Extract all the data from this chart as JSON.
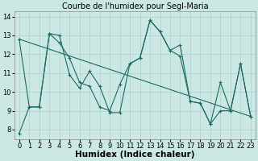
{
  "title": "Courbe de l'humidex pour Segl-Maria",
  "xlabel": "Humidex (Indice chaleur)",
  "xlim": [
    -0.5,
    23.5
  ],
  "ylim": [
    7.5,
    14.3
  ],
  "yticks": [
    8,
    9,
    10,
    11,
    12,
    13,
    14
  ],
  "xticks": [
    0,
    1,
    2,
    3,
    4,
    5,
    6,
    7,
    8,
    9,
    10,
    11,
    12,
    13,
    14,
    15,
    16,
    17,
    18,
    19,
    20,
    21,
    22,
    23
  ],
  "bg_color": "#cce8e4",
  "grid_color": "#b0d0cc",
  "line_color": "#1a6b60",
  "line1_x": [
    0,
    1,
    2,
    3,
    4,
    5,
    6,
    7,
    8,
    9,
    10,
    11,
    12,
    13,
    14,
    15,
    16,
    17,
    18,
    19,
    20,
    21,
    22,
    23
  ],
  "line1_y": [
    7.8,
    9.2,
    9.2,
    13.1,
    13.0,
    10.9,
    10.2,
    11.1,
    10.3,
    8.9,
    8.9,
    11.5,
    11.8,
    13.8,
    13.2,
    12.2,
    11.9,
    9.5,
    9.4,
    8.3,
    10.5,
    9.0,
    11.5,
    8.7
  ],
  "line2_x": [
    0,
    1,
    2,
    3,
    4,
    5,
    6,
    7,
    8,
    9,
    10,
    11,
    12,
    13,
    14,
    15,
    16,
    17,
    18,
    19,
    20,
    21,
    22,
    23
  ],
  "line2_y": [
    12.8,
    9.2,
    9.2,
    13.1,
    12.6,
    11.8,
    10.5,
    10.3,
    9.2,
    9.0,
    10.4,
    11.5,
    11.8,
    13.8,
    13.2,
    12.2,
    12.5,
    9.5,
    9.4,
    8.3,
    9.0,
    9.0,
    11.5,
    8.7
  ],
  "line3_x": [
    0,
    23
  ],
  "line3_y": [
    12.8,
    8.7
  ],
  "title_fontsize": 7,
  "xlabel_fontsize": 7.5,
  "tick_fontsize": 6
}
